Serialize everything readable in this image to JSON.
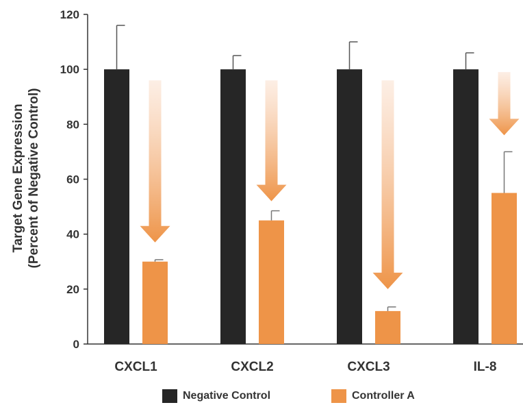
{
  "chart_data": {
    "type": "bar",
    "title": "",
    "ylabel_lines": [
      "Target Gene Expression",
      "(Percent of Negative Control)"
    ],
    "xlabel": "",
    "ylim": [
      0,
      120
    ],
    "yticks": [
      0,
      20,
      40,
      60,
      80,
      100,
      120
    ],
    "categories": [
      "CXCL1",
      "CXCL2",
      "CXCL3",
      "IL-8"
    ],
    "series": [
      {
        "name": "Negative Control",
        "color": "#262626",
        "values": [
          100,
          100,
          100,
          100
        ],
        "errors": [
          16,
          5,
          10,
          6
        ]
      },
      {
        "name": "Controller A",
        "color": "#EE9448",
        "values": [
          30,
          45,
          12,
          55
        ],
        "errors": [
          0.7,
          3.5,
          1.5,
          15
        ]
      }
    ],
    "annotations": [
      {
        "type": "downward-arrow",
        "category": "CXCL1",
        "from": 96,
        "to": 37
      },
      {
        "type": "downward-arrow",
        "category": "CXCL2",
        "from": 96,
        "to": 52
      },
      {
        "type": "downward-arrow",
        "category": "CXCL3",
        "from": 96,
        "to": 20
      },
      {
        "type": "downward-arrow",
        "category": "IL-8",
        "from": 99,
        "to": 76
      }
    ],
    "legend_position": "bottom",
    "grid": false
  }
}
